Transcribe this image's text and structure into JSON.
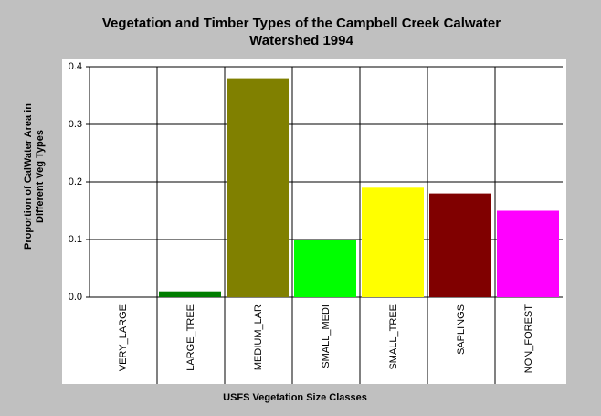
{
  "chart_data": {
    "type": "bar",
    "title": [
      "Vegetation and Timber Types of the Campbell Creek Calwater",
      "Watershed 1994"
    ],
    "y_label": [
      "Proportion of CalWater Area in",
      "Different Veg Types"
    ],
    "x_label": "USFS Vegetation Size Classes",
    "categories": [
      "VERY_LARGE",
      "LARGE_TREE",
      "MEDIUM_LAR",
      "SMALL_MEDI",
      "SMALL_TREE",
      "SAPLINGS",
      "NON_FOREST"
    ],
    "values": [
      0,
      0.01,
      0.38,
      0.1,
      0.19,
      0.18,
      0.15
    ],
    "colors": [
      "#008000",
      "#007d00",
      "#808000",
      "#00ff00",
      "#ffff00",
      "#800000",
      "#ff00ff"
    ],
    "ylim": [
      0,
      0.4
    ],
    "yticks": [
      {
        "value": 0,
        "label": "0.0"
      },
      0.1,
      0.2,
      0.3,
      0.4
    ],
    "grid": true
  }
}
